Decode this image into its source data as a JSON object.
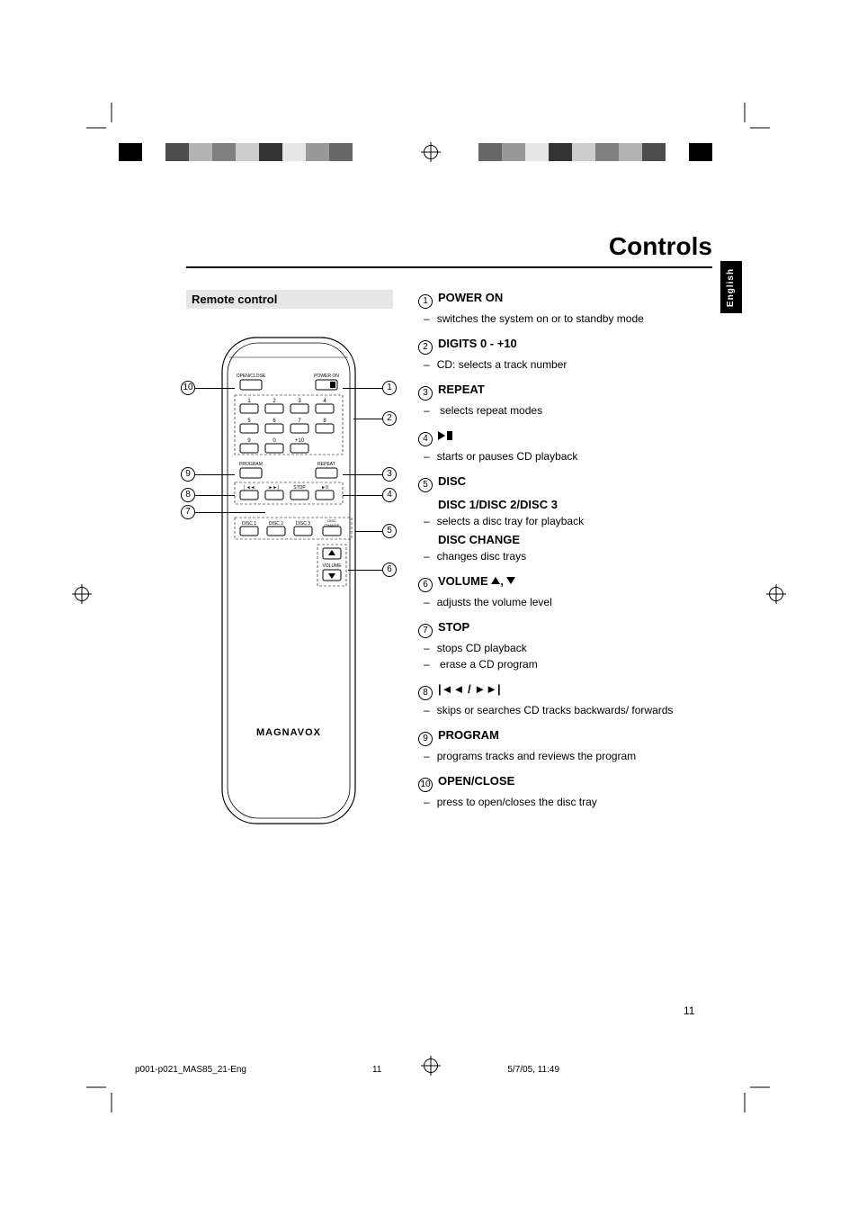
{
  "page": {
    "title": "Controls",
    "section_heading": "Remote control",
    "language_tab": "English",
    "page_number": "11",
    "footer_file": "p001-p021_MAS85_21-Eng",
    "footer_page": "11",
    "footer_date": "5/7/05, 11:49"
  },
  "top_bar_colors_left": [
    "#000000",
    "#ffffff",
    "#4d4d4d",
    "#b3b3b3",
    "#808080",
    "#cccccc",
    "#333333",
    "#e6e6e6",
    "#999999",
    "#666666"
  ],
  "top_bar_colors_right": [
    "#666666",
    "#999999",
    "#e6e6e6",
    "#333333",
    "#cccccc",
    "#808080",
    "#b3b3b3",
    "#4d4d4d",
    "#ffffff",
    "#000000"
  ],
  "remote": {
    "brand": "MAGNAVOX",
    "labels": {
      "open_close": "OPEN/CLOSE",
      "power_on": "POWER ON",
      "program": "PROGRAM",
      "repeat": "REPEAT",
      "stop": "STOP",
      "disc1": "DISC 1",
      "disc2": "DISC 2",
      "disc3": "DISC 3",
      "disc_change": "DISC CHANGE",
      "volume": "VOLUME",
      "d1": "1",
      "d2": "2",
      "d3": "3",
      "d4": "4",
      "d5": "5",
      "d6": "6",
      "d7": "7",
      "d8": "8",
      "d9": "9",
      "d0": "0",
      "d10": "+10"
    }
  },
  "controls": [
    {
      "n": "1",
      "head": "POWER ON",
      "descs": [
        "switches the system on or to standby mode"
      ]
    },
    {
      "n": "2",
      "head": "DIGITS 0 - +10",
      "descs": [
        "CD: selects a track number"
      ]
    },
    {
      "n": "3",
      "head": "REPEAT",
      "descs": [
        " selects repeat modes"
      ]
    },
    {
      "n": "4",
      "head_html": "play-pause",
      "descs": [
        "starts or pauses CD playback"
      ]
    },
    {
      "n": "5",
      "head": "DISC",
      "subs": [
        {
          "sub": "DISC 1/DISC 2/DISC 3",
          "descs": [
            "selects a disc tray for playback"
          ]
        },
        {
          "sub": "DISC CHANGE",
          "descs": [
            "changes disc trays"
          ]
        }
      ]
    },
    {
      "n": "6",
      "head_html": "volume",
      "head": "VOLUME",
      "descs": [
        "adjusts the volume level"
      ]
    },
    {
      "n": "7",
      "head": "STOP",
      "descs": [
        "stops CD playback",
        " erase a CD program"
      ]
    },
    {
      "n": "8",
      "head_html": "skip",
      "descs": [
        "skips or searches CD tracks backwards/ forwards"
      ]
    },
    {
      "n": "9",
      "head": "PROGRAM",
      "descs": [
        "programs tracks and reviews the program"
      ]
    },
    {
      "n": "10",
      "head": "OPEN/CLOSE",
      "descs": [
        "press to open/closes the disc tray"
      ]
    }
  ]
}
